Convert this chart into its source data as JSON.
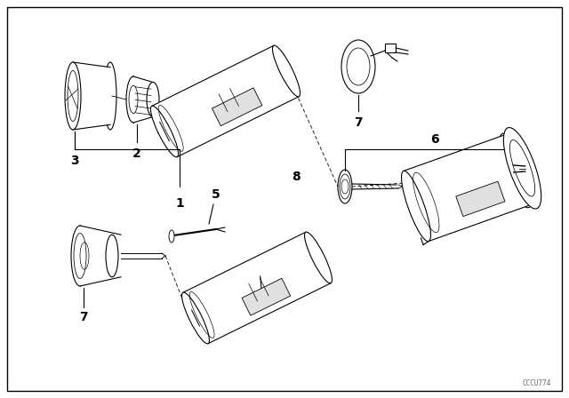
{
  "background_color": "#ffffff",
  "border_color": "#000000",
  "line_color": "#000000",
  "text_color": "#000000",
  "watermark": "CCCU774",
  "figsize": [
    6.4,
    4.48
  ],
  "dpi": 100
}
